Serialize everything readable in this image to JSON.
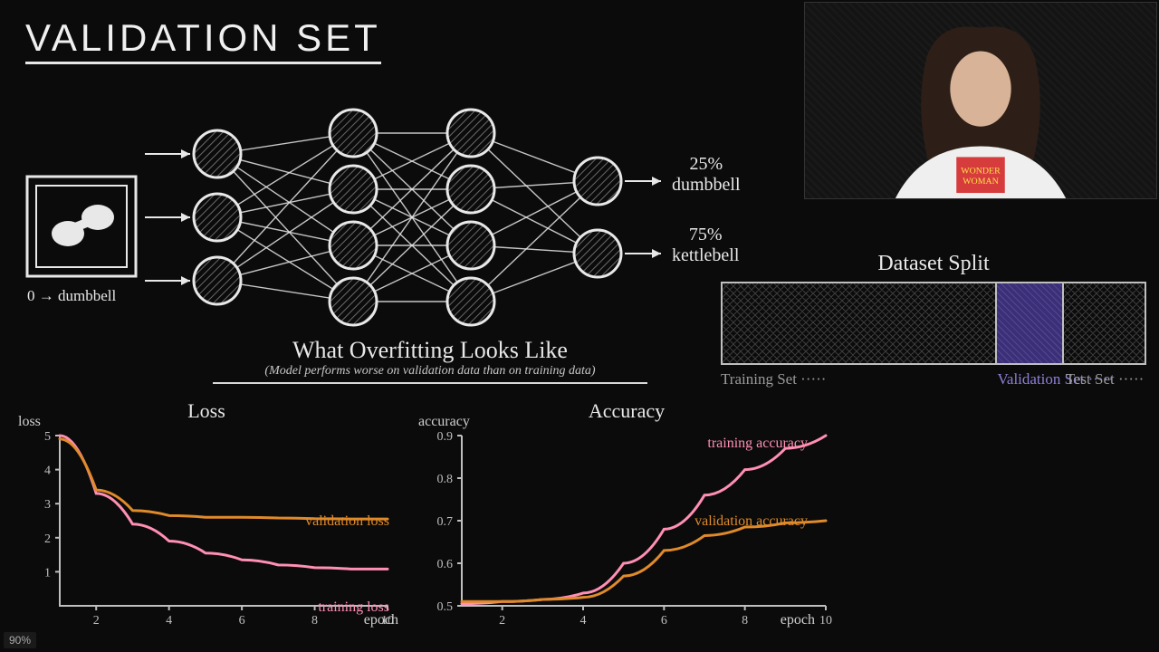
{
  "title": "VALIDATION SET",
  "zoom": "90%",
  "colors": {
    "chalk": "#e8e8e8",
    "training": "#ff8fb3",
    "validation": "#e08a2a",
    "axis": "#bfbfbf",
    "purple": "#4b3a9e",
    "muted": "#9a9a9a",
    "bg": "#0b0b0b"
  },
  "network": {
    "input_label": "0 → dumbbell",
    "layers": [
      3,
      4,
      4,
      2
    ],
    "node_radius": 26,
    "node_stroke": "#e8e8e8",
    "hatch_color": "#6a6a6a",
    "output1": {
      "pct": "25%",
      "name": "dumbbell"
    },
    "output2": {
      "pct": "75%",
      "name": "kettlebell"
    }
  },
  "split": {
    "title": "Dataset Split",
    "segments": [
      {
        "label": "Training Set",
        "width_pct": 65,
        "style": "gray"
      },
      {
        "label": "Validation Set",
        "width_pct": 16,
        "style": "purple"
      },
      {
        "label": "Test Set",
        "width_pct": 19,
        "style": "gray"
      }
    ]
  },
  "overfitting": {
    "heading": "What Overfitting Looks Like",
    "sub": "(Model performs worse on validation data than on training data)"
  },
  "loss_chart": {
    "type": "line",
    "title": "Loss",
    "xlabel": "epoch",
    "ylabel": "loss",
    "xlim": [
      1,
      10
    ],
    "ylim": [
      0,
      5
    ],
    "xticks": [
      2,
      4,
      6,
      8,
      10
    ],
    "yticks": [
      1,
      2,
      3,
      4,
      5
    ],
    "label_fontsize": 16,
    "series": [
      {
        "name": "training loss",
        "color": "#ff8fb3",
        "x": [
          1,
          2,
          3,
          4,
          5,
          6,
          7,
          8,
          9,
          10
        ],
        "y": [
          5.0,
          3.3,
          2.4,
          1.9,
          1.55,
          1.35,
          1.2,
          1.12,
          1.08,
          1.08
        ]
      },
      {
        "name": "validation loss",
        "color": "#e08a2a",
        "x": [
          1,
          2,
          3,
          4,
          5,
          6,
          7,
          8,
          9,
          10
        ],
        "y": [
          4.9,
          3.4,
          2.8,
          2.65,
          2.6,
          2.6,
          2.58,
          2.56,
          2.55,
          2.55
        ]
      }
    ],
    "line_width": 3
  },
  "acc_chart": {
    "type": "line",
    "title": "Accuracy",
    "xlabel": "epoch",
    "ylabel": "accuracy",
    "xlim": [
      1,
      10
    ],
    "ylim": [
      0.5,
      0.9
    ],
    "xticks": [
      2,
      4,
      6,
      8,
      10
    ],
    "yticks": [
      0.5,
      0.6,
      0.7,
      0.8,
      0.9
    ],
    "label_fontsize": 16,
    "series": [
      {
        "name": "training accuracy",
        "color": "#ff8fb3",
        "x": [
          1,
          2,
          3,
          4,
          5,
          6,
          7,
          8,
          9,
          10
        ],
        "y": [
          0.505,
          0.51,
          0.515,
          0.53,
          0.6,
          0.68,
          0.76,
          0.82,
          0.87,
          0.9
        ]
      },
      {
        "name": "validation accuracy",
        "color": "#e08a2a",
        "x": [
          1,
          2,
          3,
          4,
          5,
          6,
          7,
          8,
          9,
          10
        ],
        "y": [
          0.51,
          0.51,
          0.515,
          0.52,
          0.57,
          0.63,
          0.665,
          0.685,
          0.695,
          0.7
        ]
      }
    ],
    "line_width": 3
  }
}
